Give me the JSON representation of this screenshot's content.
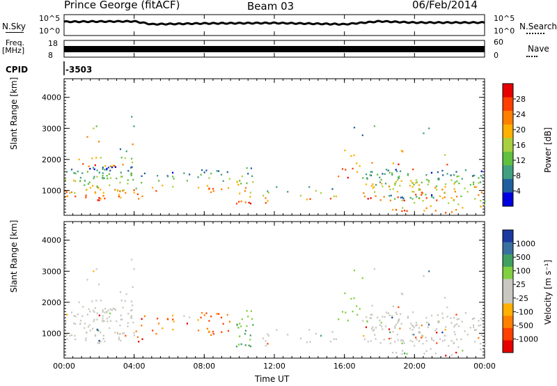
{
  "header": {
    "station": "Prince George (fitACF)",
    "beam": "Beam 03",
    "date": "06/Feb/2014"
  },
  "strip_labels": {
    "nsky": "N.Sky",
    "nsky_ticks": [
      "10^5",
      "10^0"
    ],
    "nsearch": "N.Search",
    "freq": "Freq.",
    "freq_unit": "[MHz]",
    "freq_ticks": [
      "18",
      "8"
    ],
    "nave": "Nave",
    "nave_ticks": [
      "60",
      "0"
    ],
    "cpid": "CPID",
    "cpid_value": "-3503"
  },
  "chart_data": [
    {
      "type": "line",
      "name": "N.Sky / N.Search",
      "x_range_hours": [
        0,
        24
      ],
      "description_series": [
        {
          "hours": [
            0,
            4,
            5,
            8,
            12,
            16,
            18,
            20,
            24
          ],
          "log10_value": [
            3.3,
            3.4,
            2.7,
            2.9,
            3.0,
            2.7,
            3.4,
            3.1,
            3.1
          ]
        }
      ]
    },
    {
      "type": "heatmap",
      "title": "Power",
      "ylabel": "Slant Range [km]",
      "ylim": [
        200,
        4600
      ],
      "yticks": [
        "4000",
        "3000",
        "2000",
        "1000"
      ],
      "colorbar_label": "Power [dB]",
      "colorbar_ticks": [
        "28",
        "24",
        "20",
        "16",
        "12",
        "8",
        "4"
      ],
      "colorbar_colors": [
        "#e60000",
        "#ff4000",
        "#ff8000",
        "#ffb000",
        "#a8d040",
        "#60c040",
        "#40a080",
        "#2060a0",
        "#0000e0"
      ]
    },
    {
      "type": "heatmap",
      "title": "Velocity",
      "ylabel": "Slant Range [km]",
      "ylim": [
        200,
        4600
      ],
      "yticks": [
        "4000",
        "3000",
        "2000",
        "1000"
      ],
      "xlabel": "Time UT",
      "xticks": [
        "00:00",
        "04:00",
        "08:00",
        "12:00",
        "16:00",
        "20:00",
        "00:00"
      ],
      "colorbar_label": "Velocity [m s⁻¹]",
      "colorbar_ticks": [
        "1000",
        "500",
        "100",
        "25",
        "-25",
        "-100",
        "-500",
        "-1000"
      ],
      "colorbar_colors": [
        "#1a3aa0",
        "#3a70a0",
        "#40a060",
        "#80d040",
        "#c8c8c0",
        "#c8c8c0",
        "#ffb000",
        "#ff8000",
        "#ff4000",
        "#e60000"
      ]
    }
  ]
}
